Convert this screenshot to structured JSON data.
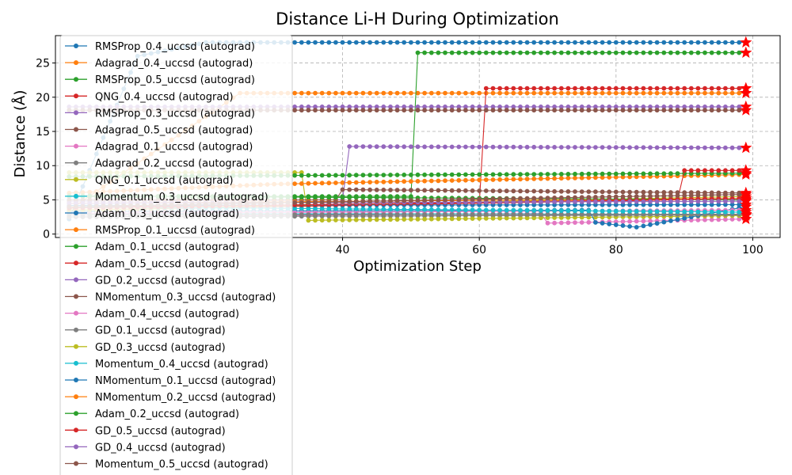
{
  "chart_data": {
    "type": "line",
    "title": "Distance Li-H During Optimization",
    "xlabel": "Optimization Step",
    "ylabel": "Distance (Å)",
    "xlim": [
      -2,
      104
    ],
    "ylim": [
      -0.5,
      29
    ],
    "xticks": [
      40,
      60,
      80,
      100
    ],
    "yticks": [
      0,
      5,
      10,
      15,
      20,
      25
    ],
    "grid": true,
    "legend_position": "top-left",
    "final_marker": "red star at step 99",
    "series": [
      {
        "name": "RMSProp_0.4_uccsd (autograd)",
        "color": "#1f77b4",
        "points": [
          [
            0,
            2.2
          ],
          [
            10,
            26.0
          ],
          [
            20,
            28.0
          ],
          [
            99,
            28.0
          ]
        ]
      },
      {
        "name": "Adagrad_0.4_uccsd (autograd)",
        "color": "#ff7f0e",
        "points": [
          [
            0,
            3.5
          ],
          [
            25,
            20.6
          ],
          [
            99,
            20.6
          ]
        ]
      },
      {
        "name": "RMSProp_0.5_uccsd (autograd)",
        "color": "#2ca02c",
        "points": [
          [
            0,
            5.5
          ],
          [
            50,
            5.5
          ],
          [
            51,
            26.5
          ],
          [
            99,
            26.5
          ]
        ]
      },
      {
        "name": "QNG_0.4_uccsd (autograd)",
        "color": "#d62728",
        "points": [
          [
            0,
            4.0
          ],
          [
            60,
            4.5
          ],
          [
            61,
            21.3
          ],
          [
            99,
            21.3
          ]
        ]
      },
      {
        "name": "RMSProp_0.3_uccsd (autograd)",
        "color": "#9467bd",
        "points": [
          [
            0,
            18.6
          ],
          [
            99,
            18.6
          ]
        ]
      },
      {
        "name": "Adagrad_0.5_uccsd (autograd)",
        "color": "#8c564b",
        "points": [
          [
            0,
            18.1
          ],
          [
            99,
            18.1
          ]
        ]
      },
      {
        "name": "Adagrad_0.1_uccsd (autograd)",
        "color": "#e377c2",
        "points": [
          [
            0,
            2.5
          ],
          [
            69,
            3.0
          ],
          [
            70,
            1.6
          ],
          [
            99,
            2.2
          ]
        ]
      },
      {
        "name": "Adagrad_0.2_uccsd (autograd)",
        "color": "#7f7f7f",
        "points": [
          [
            0,
            2.5
          ],
          [
            99,
            2.8
          ]
        ]
      },
      {
        "name": "QNG_0.1_uccsd (autograd)",
        "color": "#bcbd22",
        "points": [
          [
            0,
            9.0
          ],
          [
            34,
            9.0
          ],
          [
            35,
            2.0
          ],
          [
            99,
            2.7
          ]
        ]
      },
      {
        "name": "Momentum_0.3_uccsd (autograd)",
        "color": "#17becf",
        "points": [
          [
            0,
            3.0
          ],
          [
            99,
            2.9
          ]
        ]
      },
      {
        "name": "Adam_0.3_uccsd (autograd)",
        "color": "#1f77b4",
        "points": [
          [
            0,
            3.3
          ],
          [
            76,
            3.5
          ],
          [
            77,
            1.7
          ],
          [
            83,
            1.0
          ],
          [
            99,
            4.0
          ]
        ]
      },
      {
        "name": "RMSProp_0.1_uccsd (autograd)",
        "color": "#ff7f0e",
        "points": [
          [
            0,
            6.0
          ],
          [
            30,
            7.3
          ],
          [
            99,
            8.7
          ]
        ]
      },
      {
        "name": "Adam_0.1_uccsd (autograd)",
        "color": "#2ca02c",
        "points": [
          [
            0,
            8.4
          ],
          [
            99,
            8.9
          ]
        ]
      },
      {
        "name": "Adam_0.5_uccsd (autograd)",
        "color": "#d62728",
        "points": [
          [
            0,
            3.5
          ],
          [
            89,
            5.0
          ],
          [
            90,
            9.3
          ],
          [
            99,
            9.3
          ]
        ]
      },
      {
        "name": "GD_0.2_uccsd (autograd)",
        "color": "#9467bd",
        "points": [
          [
            0,
            4.8
          ],
          [
            40,
            5.0
          ],
          [
            41,
            12.8
          ],
          [
            99,
            12.6
          ]
        ]
      },
      {
        "name": "NMomentum_0.3_uccsd (autograd)",
        "color": "#8c564b",
        "points": [
          [
            0,
            5.0
          ],
          [
            39,
            5.0
          ],
          [
            40,
            6.5
          ],
          [
            99,
            6.0
          ]
        ]
      },
      {
        "name": "Adam_0.4_uccsd (autograd)",
        "color": "#e377c2",
        "points": [
          [
            0,
            3.0
          ],
          [
            99,
            3.5
          ]
        ]
      },
      {
        "name": "GD_0.1_uccsd (autograd)",
        "color": "#7f7f7f",
        "points": [
          [
            0,
            2.8
          ],
          [
            99,
            2.9
          ]
        ]
      },
      {
        "name": "GD_0.3_uccsd (autograd)",
        "color": "#bcbd22",
        "points": [
          [
            0,
            3.5
          ],
          [
            99,
            5.5
          ]
        ]
      },
      {
        "name": "Momentum_0.4_uccsd (autograd)",
        "color": "#17becf",
        "points": [
          [
            0,
            4.0
          ],
          [
            99,
            3.2
          ]
        ]
      },
      {
        "name": "NMomentum_0.1_uccsd (autograd)",
        "color": "#1f77b4",
        "points": [
          [
            0,
            4.2
          ],
          [
            99,
            4.3
          ]
        ]
      },
      {
        "name": "NMomentum_0.2_uccsd (autograd)",
        "color": "#ff7f0e",
        "points": [
          [
            0,
            4.5
          ],
          [
            99,
            5.2
          ]
        ]
      },
      {
        "name": "Adam_0.2_uccsd (autograd)",
        "color": "#2ca02c",
        "points": [
          [
            0,
            5.6
          ],
          [
            99,
            5.0
          ]
        ]
      },
      {
        "name": "GD_0.5_uccsd (autograd)",
        "color": "#d62728",
        "points": [
          [
            0,
            3.8
          ],
          [
            99,
            5.2
          ]
        ]
      },
      {
        "name": "GD_0.4_uccsd (autograd)",
        "color": "#9467bd",
        "points": [
          [
            0,
            4.5
          ],
          [
            99,
            4.8
          ]
        ]
      },
      {
        "name": "Momentum_0.5_uccsd (autograd)",
        "color": "#8c564b",
        "points": [
          [
            0,
            4.0
          ],
          [
            99,
            5.8
          ]
        ]
      }
    ]
  }
}
